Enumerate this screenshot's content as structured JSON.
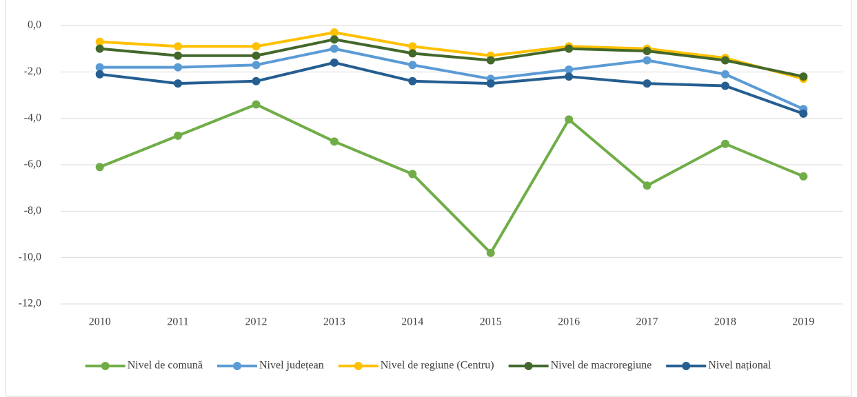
{
  "chart_data": {
    "type": "line",
    "categories": [
      "2010",
      "2011",
      "2012",
      "2013",
      "2014",
      "2015",
      "2016",
      "2017",
      "2018",
      "2019"
    ],
    "series": [
      {
        "name": "Nivel de comună",
        "color": "#70ad47",
        "values": [
          -6.1,
          -4.75,
          -3.4,
          -5.0,
          -6.4,
          -9.8,
          -4.05,
          -6.9,
          -5.1,
          -6.5
        ]
      },
      {
        "name": "Nivel județean",
        "color": "#5b9bd5",
        "values": [
          -1.8,
          -1.8,
          -1.7,
          -1.0,
          -1.7,
          -2.3,
          -1.9,
          -1.5,
          -2.1,
          -3.6
        ]
      },
      {
        "name": "Nivel de regiune (Centru)",
        "color": "#ffc000",
        "values": [
          -0.7,
          -0.9,
          -0.9,
          -0.3,
          -0.9,
          -1.3,
          -0.9,
          -1.0,
          -1.4,
          -2.3
        ]
      },
      {
        "name": "Nivel de macroregiune",
        "color": "#43682b",
        "values": [
          -1.0,
          -1.3,
          -1.3,
          -0.6,
          -1.2,
          -1.5,
          -1.0,
          -1.1,
          -1.5,
          -2.2
        ]
      },
      {
        "name": "Nivel național",
        "color": "#255e91",
        "values": [
          -2.1,
          -2.5,
          -2.4,
          -1.6,
          -2.4,
          -2.5,
          -2.2,
          -2.5,
          -2.6,
          -3.8
        ]
      }
    ],
    "ylim": [
      -12,
      0
    ],
    "yticks": [
      {
        "value": 0,
        "label": "0,0"
      },
      {
        "value": -2,
        "label": "-2,0"
      },
      {
        "value": -4,
        "label": "-4,0"
      },
      {
        "value": -6,
        "label": "-6,0"
      },
      {
        "value": -8,
        "label": "-8,0"
      },
      {
        "value": -10,
        "label": "-10,0"
      },
      {
        "value": -12,
        "label": "-12,0"
      }
    ],
    "grid": true,
    "legend": "bottom"
  }
}
